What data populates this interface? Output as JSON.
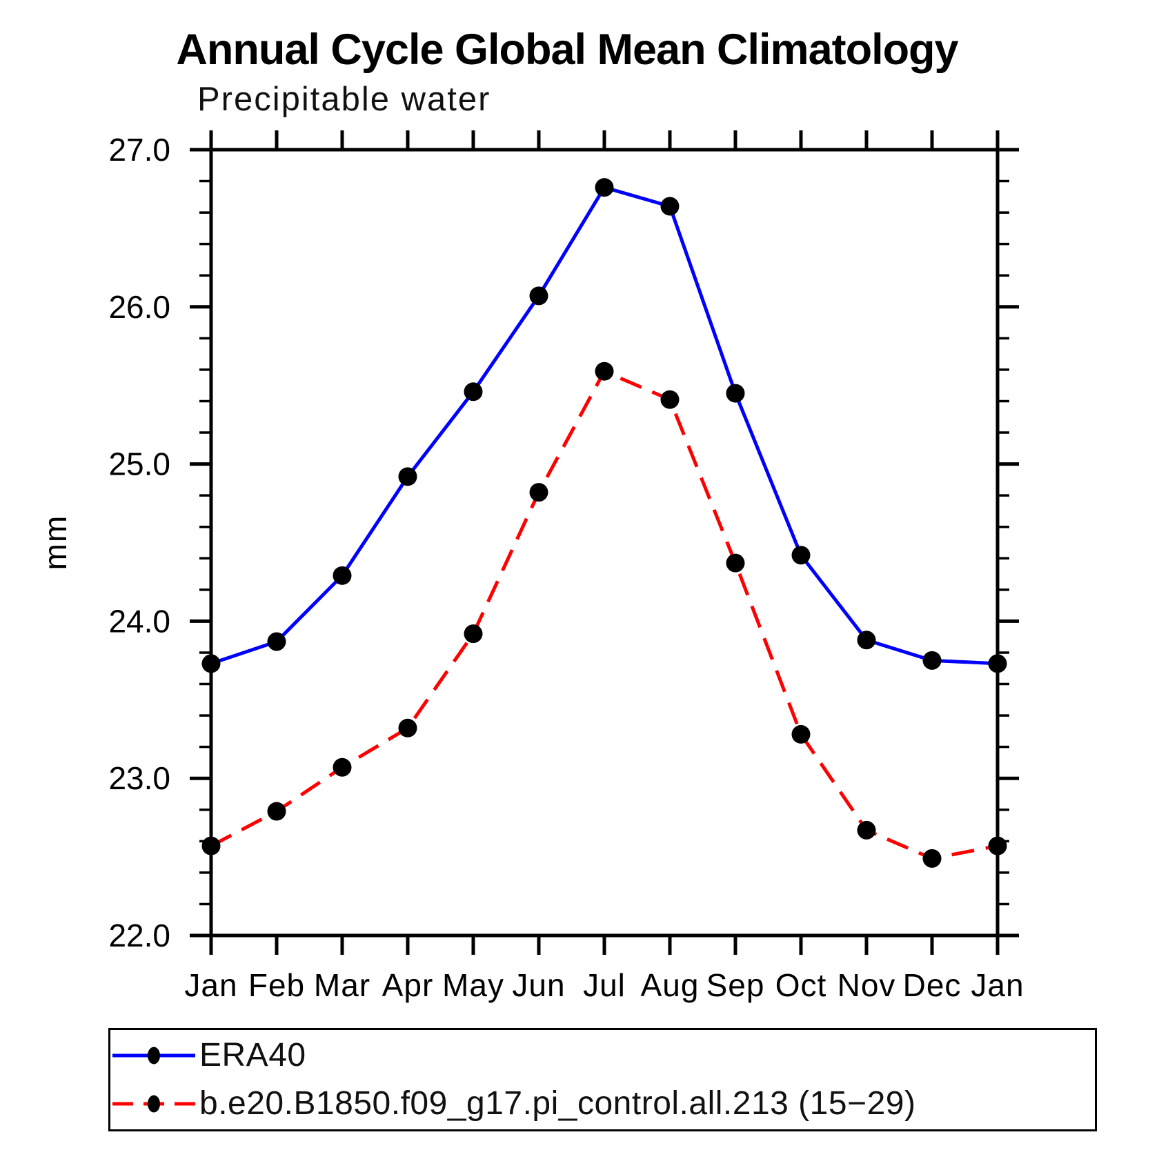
{
  "title": "Annual Cycle Global Mean Climatology",
  "subtitle": "Precipitable water",
  "chart_data": {
    "type": "line",
    "title": "Annual Cycle Global Mean Climatology",
    "subtitle": "Precipitable water",
    "ylabel": "mm",
    "categories": [
      "Jan",
      "Feb",
      "Mar",
      "Apr",
      "May",
      "Jun",
      "Jul",
      "Aug",
      "Sep",
      "Oct",
      "Nov",
      "Dec",
      "Jan"
    ],
    "ylim": [
      22.0,
      27.0
    ],
    "ytick_labels": [
      "22.0",
      "23.0",
      "24.0",
      "25.0",
      "26.0",
      "27.0"
    ],
    "ytick_minor_step": 0.2,
    "grid": false,
    "legend_position": "bottom",
    "frame": "box-outward-ticks",
    "marker": "filled-circle",
    "marker_color": "#000000",
    "axis_color": "#000000",
    "series": [
      {
        "name": "ERA40",
        "color": "#0000ff",
        "line_style": "solid",
        "values": [
          23.73,
          23.87,
          24.29,
          24.92,
          25.46,
          26.07,
          26.76,
          26.64,
          25.45,
          24.42,
          23.88,
          23.75,
          23.73
        ]
      },
      {
        "name": "b.e20.B1850.f09_g17.pi_control.all.213 (15−29)",
        "color": "#ff0000",
        "line_style": "dashed",
        "values": [
          22.57,
          22.79,
          23.07,
          23.32,
          23.92,
          24.82,
          25.59,
          25.41,
          24.37,
          23.28,
          22.67,
          22.49,
          22.57
        ]
      }
    ]
  }
}
